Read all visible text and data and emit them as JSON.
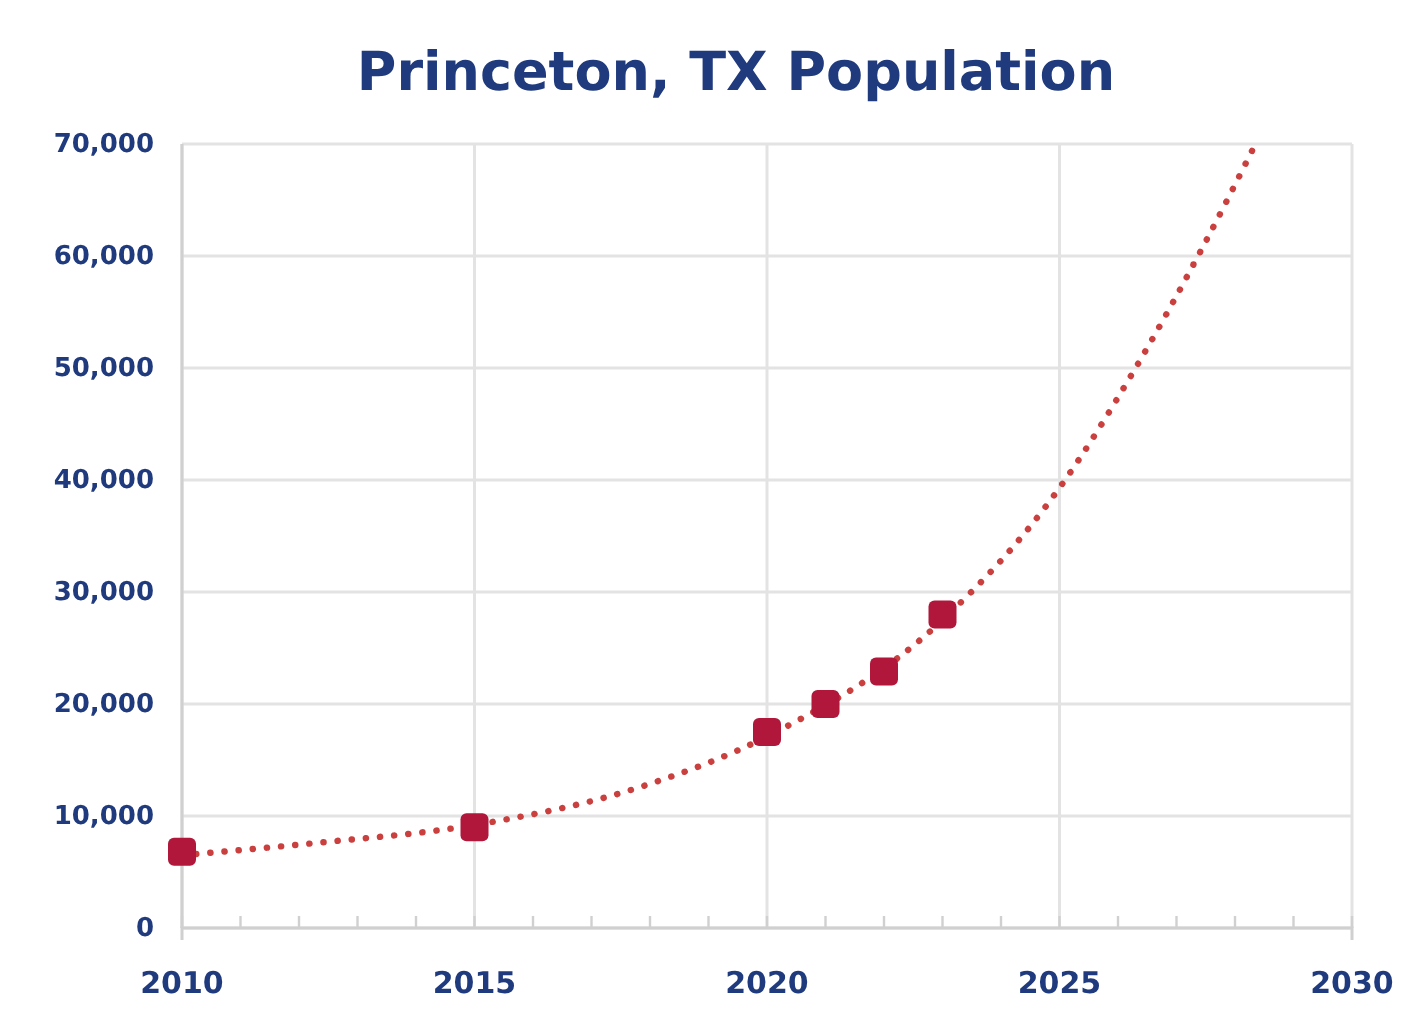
{
  "chart_data": {
    "type": "scatter",
    "title": "Princeton, TX Population",
    "xlim": [
      2010,
      2030
    ],
    "xticks": [
      2010,
      {
        "value": 2011,
        "label": null
      },
      {
        "value": 2012,
        "label": null
      },
      {
        "value": 2013,
        "label": null
      },
      {
        "value": 2014,
        "label": null
      },
      2015,
      {
        "value": 2016,
        "label": null
      },
      {
        "value": 2017,
        "label": null
      },
      {
        "value": 2018,
        "label": null
      },
      {
        "value": 2019,
        "label": null
      },
      2020,
      {
        "value": 2021,
        "label": null
      },
      {
        "value": 2022,
        "label": null
      },
      {
        "value": 2023,
        "label": null
      },
      {
        "value": 2024,
        "label": null
      },
      2025,
      {
        "value": 2026,
        "label": null
      },
      {
        "value": 2027,
        "label": null
      },
      {
        "value": 2028,
        "label": null
      },
      {
        "value": 2029,
        "label": null
      },
      2030
    ],
    "ylim": [
      0,
      70000
    ],
    "yticks": [
      {
        "value": 0,
        "label": "0"
      },
      {
        "value": 10000,
        "label": "10,000"
      },
      {
        "value": 20000,
        "label": "20,000"
      },
      {
        "value": 30000,
        "label": "30,000"
      },
      {
        "value": 40000,
        "label": "40,000"
      },
      {
        "value": 50000,
        "label": "50,000"
      },
      {
        "value": 60000,
        "label": "60,000"
      },
      {
        "value": 70000,
        "label": "70,000"
      }
    ],
    "grid": true,
    "series": [
      {
        "type": "line",
        "line_style": "dotted",
        "marker": "none",
        "color": "#c9403f",
        "x": [
          2010,
          2012.3,
          2015,
          2017.9,
          2020,
          2023,
          2025,
          2026.3,
          2027.5,
          2028.35
        ],
        "values": [
          6500,
          7600,
          9200,
          12700,
          17100,
          27500,
          39300,
          50000,
          61300,
          70000
        ]
      },
      {
        "type": "scatter",
        "marker": "square",
        "color": "#b0173a",
        "x": [
          2010,
          2015,
          2020,
          2021,
          2022,
          2023
        ],
        "values": [
          6800,
          9000,
          17500,
          20000,
          22900,
          28000
        ]
      }
    ]
  }
}
